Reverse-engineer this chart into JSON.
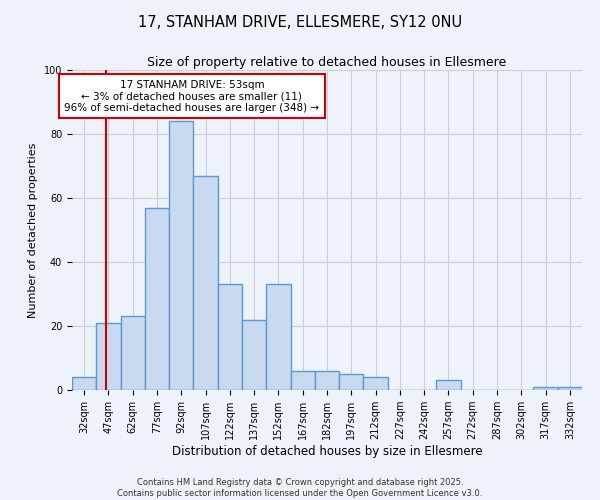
{
  "title": "17, STANHAM DRIVE, ELLESMERE, SY12 0NU",
  "subtitle": "Size of property relative to detached houses in Ellesmere",
  "xlabel": "Distribution of detached houses by size in Ellesmere",
  "ylabel": "Number of detached properties",
  "bin_edges": [
    32,
    47,
    62,
    77,
    92,
    107,
    122,
    137,
    152,
    167,
    182,
    197,
    212,
    227,
    242,
    257,
    272,
    287,
    302,
    317,
    332,
    347
  ],
  "bar_heights": [
    4,
    21,
    23,
    57,
    84,
    67,
    33,
    22,
    33,
    6,
    6,
    5,
    4,
    0,
    0,
    3,
    0,
    0,
    0,
    1,
    1
  ],
  "bar_color": "#c9d9f0",
  "bar_edge_color": "#5b9bd5",
  "bar_linewidth": 1.0,
  "property_size": 53,
  "vline_color": "#cc0000",
  "vline_linewidth": 1.5,
  "annotation_title": "17 STANHAM DRIVE: 53sqm",
  "annotation_line1": "← 3% of detached houses are smaller (11)",
  "annotation_line2": "96% of semi-detached houses are larger (348) →",
  "annotation_box_edgecolor": "#cc0000",
  "annotation_box_facecolor": "#ffffff",
  "ylim": [
    0,
    100
  ],
  "background_color": "#eef2f9",
  "grid_color": "#c8d0e0",
  "footer1": "Contains HM Land Registry data © Crown copyright and database right 2025.",
  "footer2": "Contains public sector information licensed under the Open Government Licence v3.0.",
  "title_fontsize": 10.5,
  "subtitle_fontsize": 9,
  "xlabel_fontsize": 8.5,
  "ylabel_fontsize": 8,
  "tick_fontsize": 7,
  "annotation_fontsize": 7.5,
  "footer_fontsize": 6
}
